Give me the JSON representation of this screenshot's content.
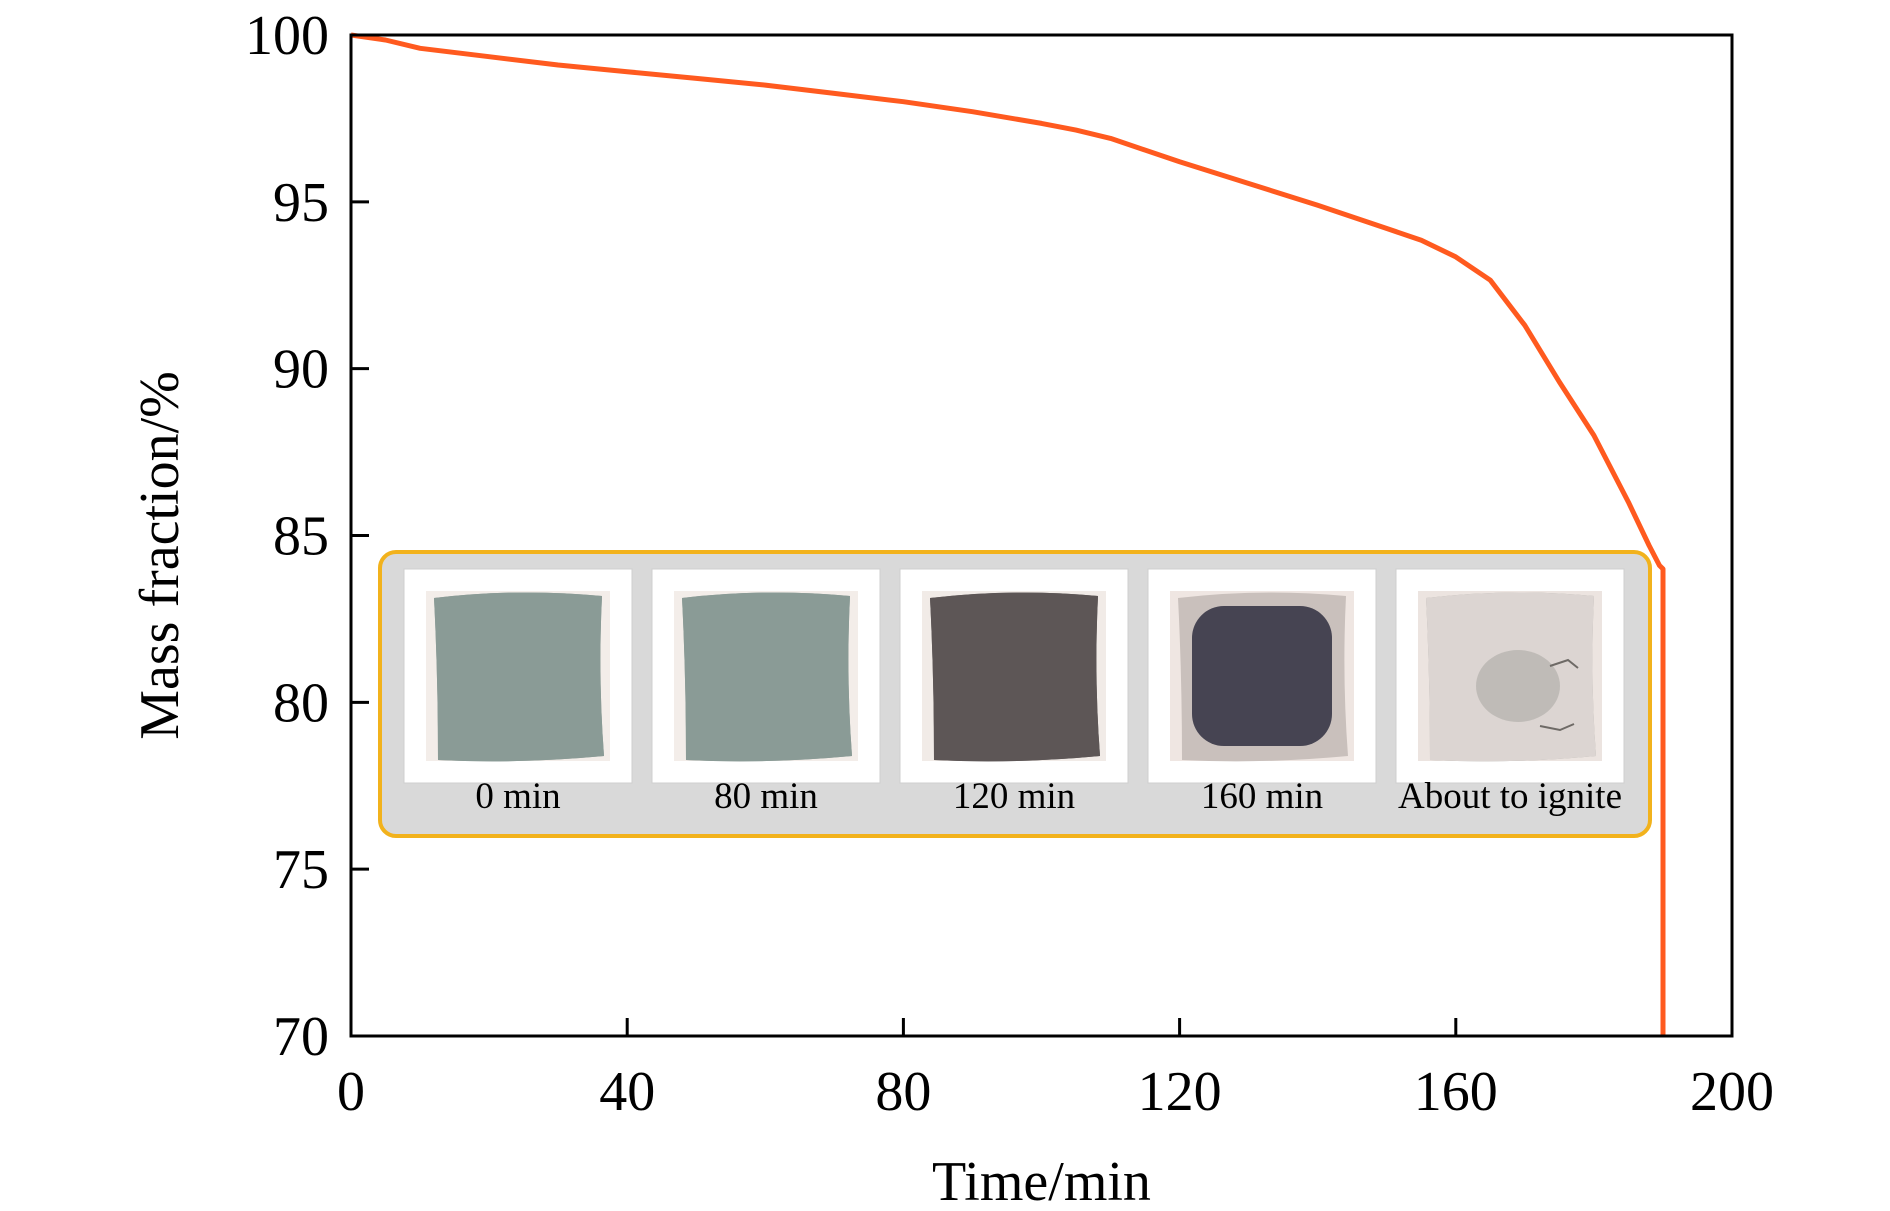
{
  "chart_data": {
    "type": "line",
    "title": "",
    "xlabel": "Time/min",
    "ylabel": "Mass fraction/%",
    "xlim": [
      0,
      200
    ],
    "ylim": [
      70,
      100
    ],
    "xticks": [
      0,
      40,
      80,
      120,
      160,
      200
    ],
    "yticks": [
      70,
      75,
      80,
      85,
      90,
      95,
      100
    ],
    "tick_labels_x": [
      "0",
      "40",
      "80",
      "120",
      "160",
      "200"
    ],
    "tick_labels_y": [
      "70",
      "75",
      "80",
      "85",
      "90",
      "95",
      "100"
    ],
    "grid": false,
    "legend": "none",
    "series": [
      {
        "color": "#ff5a1f",
        "x": [
          0,
          5,
          10,
          20,
          30,
          40,
          50,
          60,
          70,
          80,
          90,
          100,
          105,
          110,
          120,
          130,
          140,
          150,
          155,
          160,
          165,
          170,
          175,
          180,
          185,
          188,
          189.5,
          190,
          190
        ],
        "y": [
          100,
          99.85,
          99.6,
          99.35,
          99.1,
          98.9,
          98.7,
          98.5,
          98.25,
          98.0,
          97.7,
          97.35,
          97.15,
          96.9,
          96.2,
          95.55,
          94.9,
          94.2,
          93.85,
          93.35,
          92.65,
          91.3,
          89.6,
          88.0,
          86.0,
          84.7,
          84.1,
          84.0,
          70
        ]
      }
    ],
    "inset": {
      "border_color": "#f2b21c",
      "background": "#d9d9d9",
      "panels": [
        {
          "label": "0 min",
          "sample_color": "#8a9b96",
          "border_tint": "#8a9b96",
          "paper": "#f3ede9"
        },
        {
          "label": "80 min",
          "sample_color": "#8a9b96",
          "border_tint": "#8a9b96",
          "paper": "#f3ede9"
        },
        {
          "label": "120 min",
          "sample_color": "#5d5656",
          "border_tint": "#5d5656",
          "paper": "#f1ebe7"
        },
        {
          "label": "160 min",
          "sample_color": "#464452",
          "border_tint": "#c9c0bc",
          "paper": "#efe6e2"
        },
        {
          "label": "About to ignite",
          "sample_color": "#dcd5d2",
          "border_tint": "#a7a6a0",
          "paper": "#ece4e0"
        }
      ]
    }
  }
}
